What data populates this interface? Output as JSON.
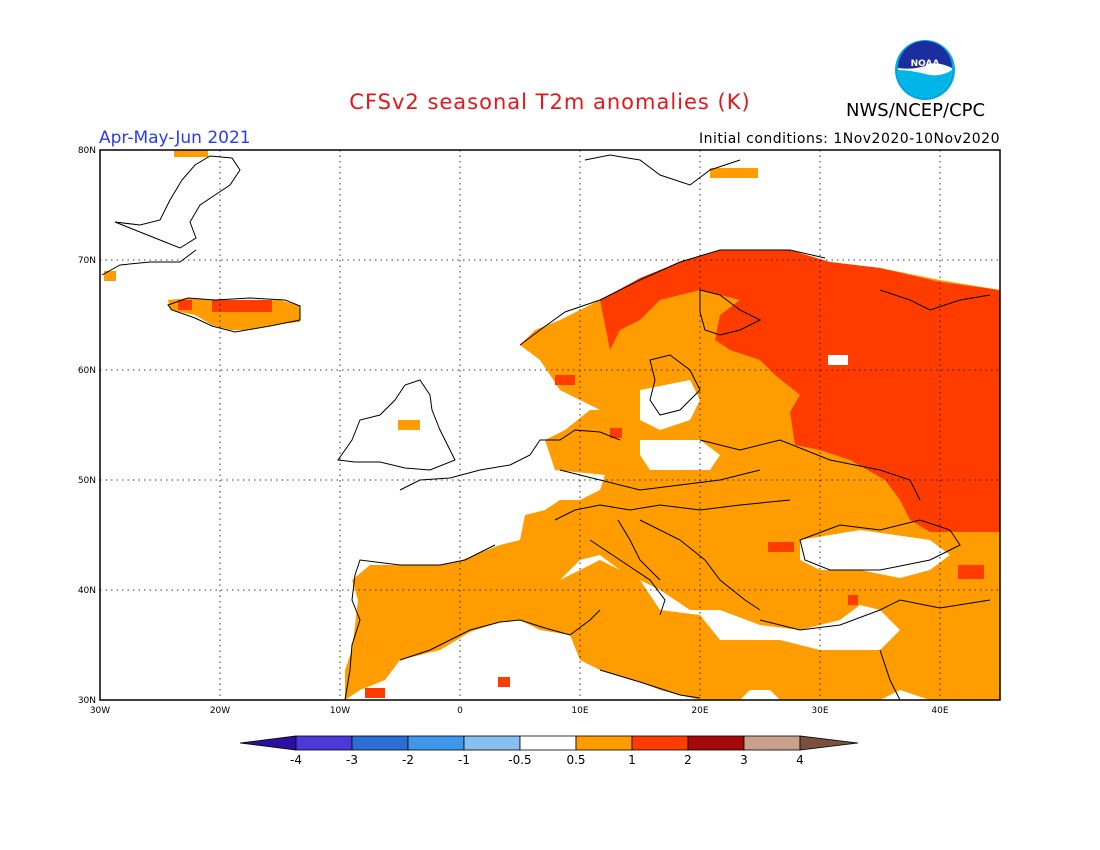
{
  "header": {
    "title": "CFSv2 seasonal T2m anomalies (K)",
    "agency": "NWS/NCEP/CPC",
    "season": "Apr-May-Jun 2021",
    "initial_conditions": "Initial conditions: 1Nov2020-10Nov2020",
    "logo_text": "NOAA"
  },
  "map": {
    "lon_range": [
      -30,
      45
    ],
    "lat_range": [
      30,
      80
    ],
    "lon_ticks": [
      "30W",
      "20W",
      "10W",
      "0",
      "10E",
      "20E",
      "30E",
      "40E"
    ],
    "lat_ticks": [
      "30N",
      "40N",
      "50N",
      "60N",
      "70N",
      "80N"
    ]
  },
  "colorbar": {
    "labels": [
      "-4",
      "-3",
      "-2",
      "-1",
      "-0.5",
      "0.5",
      "1",
      "2",
      "3",
      "4"
    ],
    "colors": [
      "#2a0fa0",
      "#4a3ad8",
      "#2b6fd6",
      "#3f97ea",
      "#86bff0",
      "#ffffff",
      "#ff9d00",
      "#ff3c00",
      "#a50a0a",
      "#c8a08c",
      "#7a4f3c"
    ]
  }
}
